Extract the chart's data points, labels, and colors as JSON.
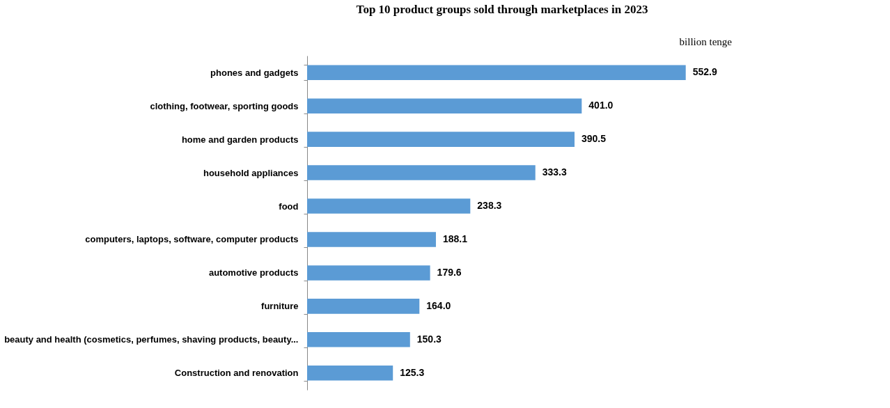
{
  "chart_data": {
    "type": "bar",
    "orientation": "horizontal",
    "title": "Top 10 product groups sold through marketplaces in 2023",
    "annotations": [
      "billion tenge"
    ],
    "categories": [
      "phones and gadgets",
      "clothing, footwear, sporting goods",
      "home and garden products",
      "household appliances",
      "food",
      "computers, laptops, software, computer products",
      "automotive products",
      "furniture",
      "beauty and health (cosmetics, perfumes, shaving products, beauty...",
      "Construction and renovation"
    ],
    "values": [
      552.9,
      401.0,
      390.5,
      333.3,
      238.3,
      188.1,
      179.6,
      164.0,
      150.3,
      125.3
    ],
    "value_labels": [
      "552.9",
      "401.0",
      "390.5",
      "333.3",
      "238.3",
      "188.1",
      "179.6",
      "164.0",
      "150.3",
      "125.3"
    ],
    "color": "#5b9bd5"
  }
}
